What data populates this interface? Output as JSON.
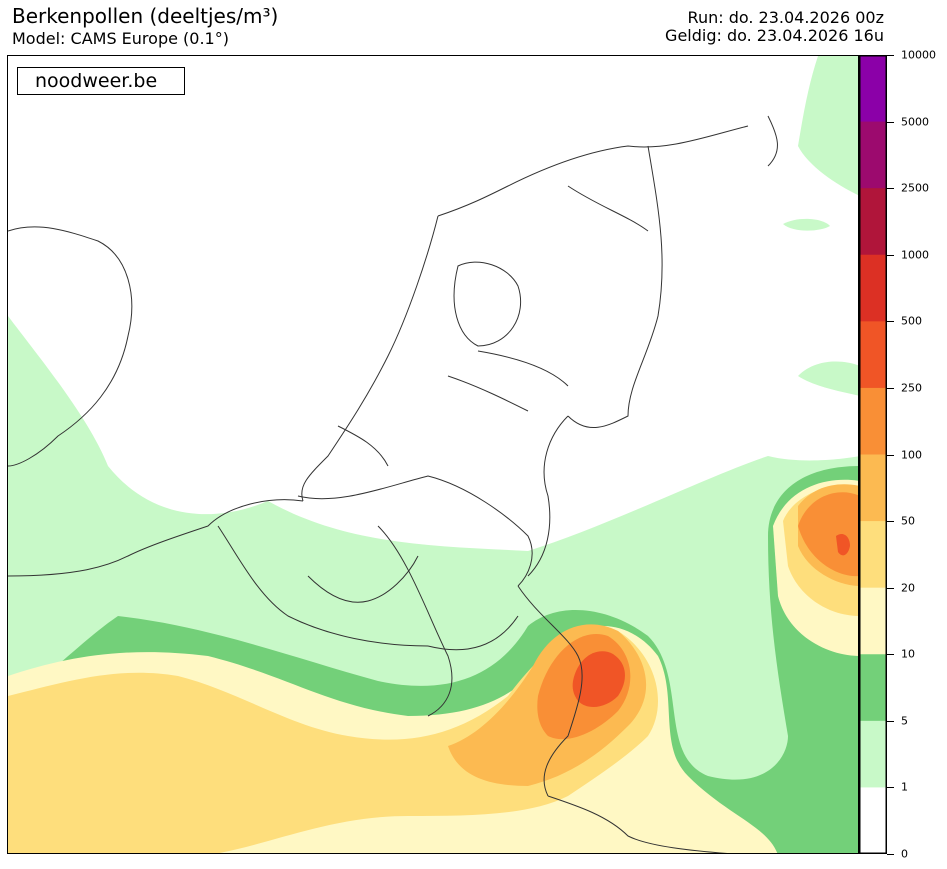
{
  "header": {
    "title": "Berkenpollen (deeltjes/m³)",
    "model": "Model: CAMS Europe (0.1°)",
    "run": "Run: do. 23.04.2026 00z",
    "valid": "Geldig: do. 23.04.2026 16u"
  },
  "map": {
    "brand": "noodweer.be"
  },
  "legend": {
    "levels": [
      {
        "label": "10000",
        "color": "#8b00a8"
      },
      {
        "label": "5000",
        "color": "#9c0a6e"
      },
      {
        "label": "2500",
        "color": "#b0153a"
      },
      {
        "label": "1000",
        "color": "#dc3024"
      },
      {
        "label": "500",
        "color": "#f05526"
      },
      {
        "label": "250",
        "color": "#f98f36"
      },
      {
        "label": "100",
        "color": "#fcba51"
      },
      {
        "label": "50",
        "color": "#fede7c"
      },
      {
        "label": "20",
        "color": "#fff8c4"
      },
      {
        "label": "10",
        "color": "#73d079"
      },
      {
        "label": "5",
        "color": "#c8f9c8"
      },
      {
        "label": "1",
        "color": "#ffffff"
      },
      {
        "label": "0",
        "color": "#ffffff"
      }
    ]
  }
}
